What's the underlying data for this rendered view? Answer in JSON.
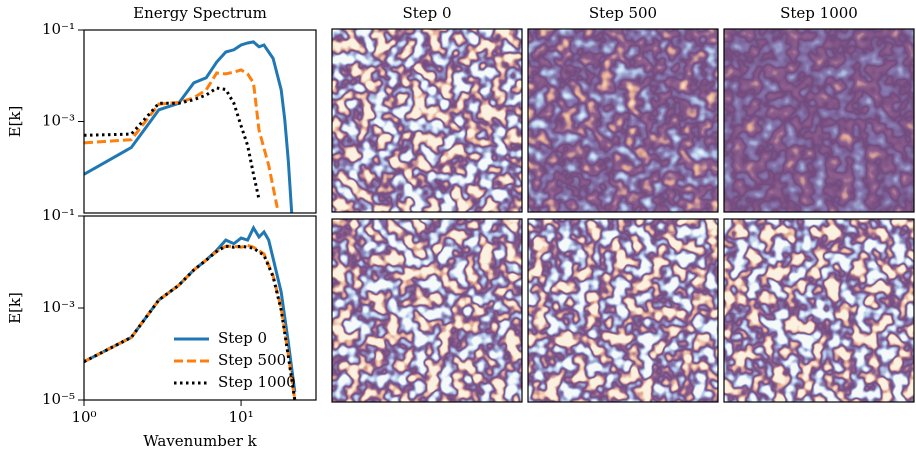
{
  "chart_data": [
    {
      "type": "line",
      "title": "Energy Spectrum",
      "y_label": "E[k]",
      "log_x": true,
      "log_y": true,
      "xlim": [
        1,
        30
      ],
      "ylim": [
        1e-05,
        0.1
      ],
      "yticks": [
        {
          "value": 0.1,
          "label": "10⁻¹"
        },
        {
          "value": 0.001,
          "label": "10⁻³"
        }
      ],
      "series": [
        {
          "color": "#1f77b4",
          "style": "solid",
          "x": [
            1,
            2,
            3,
            4,
            5,
            6,
            7,
            8,
            9,
            10,
            11,
            12,
            13,
            14,
            15,
            16,
            18,
            19,
            20,
            21
          ],
          "values": [
            7e-05,
            0.00027,
            0.0018,
            0.0025,
            0.007,
            0.009,
            0.02,
            0.033,
            0.037,
            0.047,
            0.052,
            0.055,
            0.043,
            0.047,
            0.033,
            0.024,
            0.0049,
            0.00108,
            0.00014,
            1e-05
          ]
        },
        {
          "color": "#ff7f0e",
          "style": "dashed",
          "x": [
            1,
            2,
            3,
            4,
            5,
            6,
            7,
            8,
            9,
            10,
            11,
            12,
            13,
            15,
            17
          ],
          "values": [
            0.00034,
            0.0004,
            0.0024,
            0.0026,
            0.0033,
            0.0049,
            0.0115,
            0.011,
            0.012,
            0.0134,
            0.011,
            0.007,
            0.00065,
            0.00011,
            1.3e-05
          ]
        },
        {
          "color": "#000000",
          "style": "dotted",
          "x": [
            1,
            2,
            3,
            4,
            5,
            6,
            7,
            8,
            9,
            10,
            11,
            12,
            13
          ],
          "values": [
            0.0005,
            0.00053,
            0.0025,
            0.0025,
            0.003,
            0.0038,
            0.0054,
            0.005,
            0.0025,
            0.0008,
            0.0003,
            7e-05,
            2e-05
          ]
        }
      ]
    },
    {
      "type": "line",
      "y_label": "E[k]",
      "x_label": "Wavenumber k",
      "log_x": true,
      "log_y": true,
      "xlim": [
        1,
        30
      ],
      "ylim": [
        1e-05,
        0.1
      ],
      "xticks": [
        {
          "value": 1,
          "label": "10⁰"
        },
        {
          "value": 10,
          "label": "10¹"
        }
      ],
      "yticks": [
        {
          "value": 0.1,
          "label": "10⁻¹"
        },
        {
          "value": 0.001,
          "label": "10⁻³"
        },
        {
          "value": 1e-05,
          "label": "10⁻⁵"
        }
      ],
      "legend": "lower left",
      "series": [
        {
          "name": "Step 0",
          "color": "#1f77b4",
          "style": "solid",
          "x": [
            1,
            2,
            3,
            4,
            5,
            6,
            7,
            8,
            9,
            10,
            11,
            12,
            13,
            14,
            15,
            16,
            18,
            20,
            22
          ],
          "values": [
            6.8e-05,
            0.00023,
            0.0015,
            0.0031,
            0.0067,
            0.011,
            0.018,
            0.03,
            0.025,
            0.033,
            0.03,
            0.055,
            0.035,
            0.045,
            0.03,
            0.012,
            0.0022,
            0.00018,
            1.5e-05
          ]
        },
        {
          "name": "Step 500",
          "color": "#ff7f0e",
          "style": "dashed",
          "x": [
            1,
            2,
            3,
            4,
            5,
            6,
            7,
            8,
            9,
            10,
            11,
            12,
            14,
            16,
            18,
            20,
            22
          ],
          "values": [
            6.8e-05,
            0.00023,
            0.0015,
            0.0031,
            0.0067,
            0.011,
            0.017,
            0.022,
            0.022,
            0.021,
            0.023,
            0.021,
            0.015,
            0.005,
            0.001,
            0.0001,
            1e-05
          ]
        },
        {
          "name": "Step 1000",
          "color": "#000000",
          "style": "dotted",
          "x": [
            1,
            2,
            3,
            4,
            5,
            6,
            7,
            8,
            9,
            10,
            11,
            12,
            14,
            16,
            18,
            20,
            22
          ],
          "values": [
            6.8e-05,
            0.00023,
            0.0015,
            0.0031,
            0.0067,
            0.011,
            0.017,
            0.022,
            0.021,
            0.022,
            0.021,
            0.02,
            0.014,
            0.0048,
            0.0009,
            9e-05,
            1e-05
          ]
        }
      ]
    }
  ],
  "panels": {
    "titles": [
      "Step 0",
      "Step 500",
      "Step 1000"
    ]
  }
}
